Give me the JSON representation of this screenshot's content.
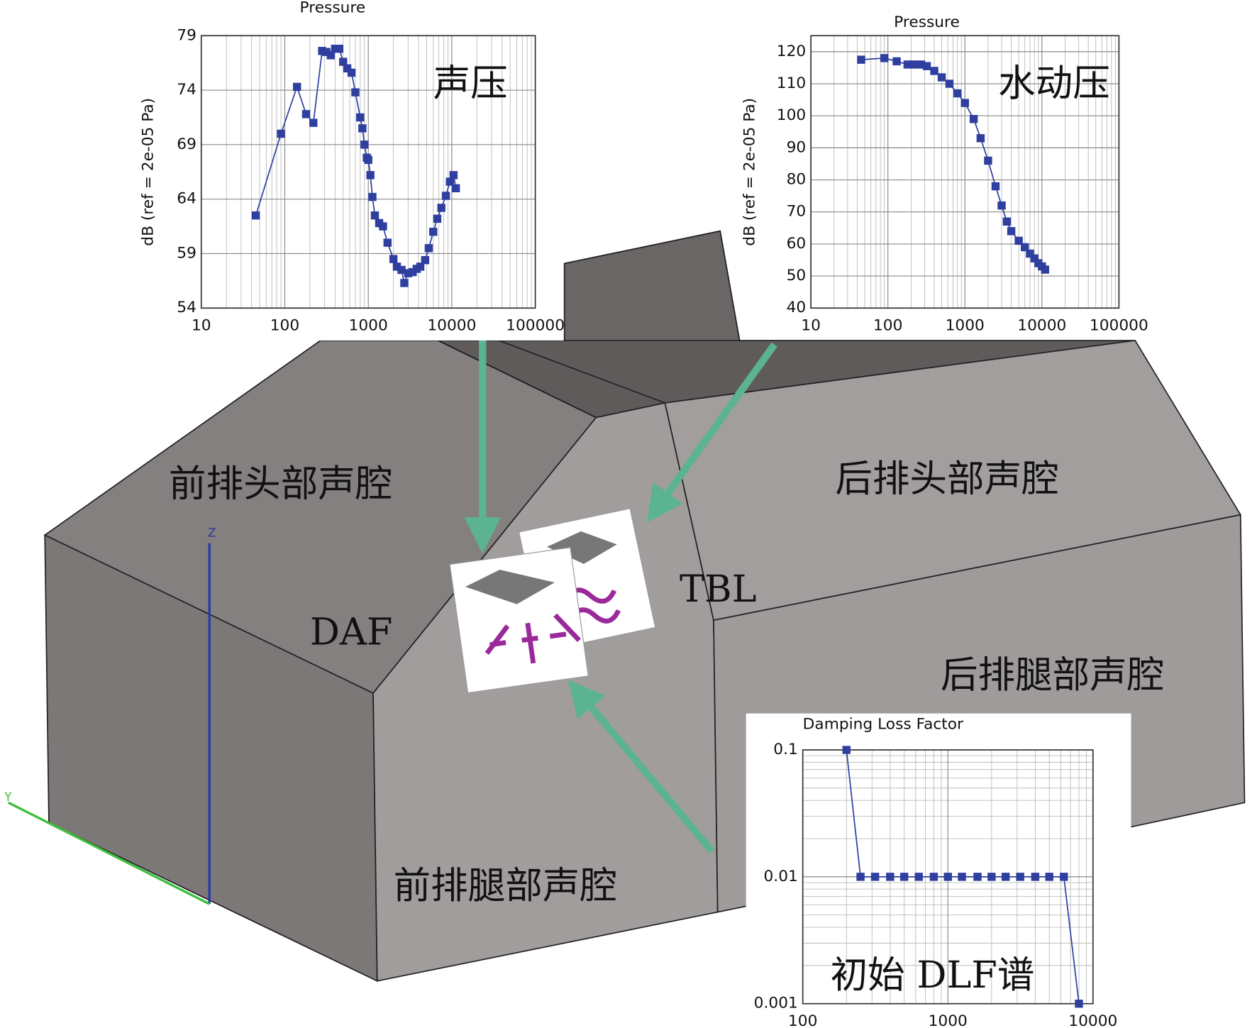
{
  "chart_data": [
    {
      "type": "line",
      "title": "Pressure",
      "y_label": "dB (ref = 2e-05 Pa)",
      "annotation": "声压",
      "color": "#2f3f9f",
      "x": [
        45,
        90,
        140,
        180,
        220,
        280,
        315,
        355,
        400,
        450,
        500,
        560,
        630,
        700,
        800,
        850,
        900,
        960,
        1000,
        1060,
        1120,
        1200,
        1350,
        1500,
        1700,
        2000,
        2200,
        2500,
        2700,
        3000,
        3400,
        3800,
        4200,
        4800,
        5300,
        6000,
        6700,
        7500,
        8500,
        9500,
        10500,
        11200
      ],
      "values": [
        62.5,
        70,
        74.3,
        71.8,
        71,
        77.6,
        77.5,
        77.2,
        77.8,
        77.8,
        76.6,
        76,
        75.6,
        73.8,
        71.5,
        70.5,
        69,
        67.8,
        67.6,
        66.2,
        64.2,
        62.5,
        61.8,
        61.5,
        60,
        58.5,
        57.8,
        57.5,
        56.3,
        57.2,
        57.3,
        57.6,
        57.8,
        58.4,
        59.5,
        61,
        62.2,
        63.2,
        64.3,
        65.6,
        66.2,
        65
      ],
      "xscale": "log",
      "xlim": [
        10,
        100000
      ],
      "xticks": [
        10,
        100,
        1000,
        10000,
        100000
      ],
      "ylim": [
        54,
        79
      ],
      "yticks": [
        54,
        59,
        64,
        69,
        74,
        79
      ],
      "grid": true
    },
    {
      "type": "line",
      "title": "Pressure",
      "y_label": "dB (ref = 2e-05 Pa)",
      "annotation": "水动压",
      "color": "#2f3f9f",
      "x": [
        45,
        90,
        130,
        180,
        220,
        270,
        320,
        400,
        500,
        630,
        800,
        1000,
        1300,
        1600,
        2000,
        2500,
        3000,
        3500,
        4000,
        5000,
        6000,
        7000,
        8000,
        9000,
        10000,
        11000
      ],
      "values": [
        117.5,
        118,
        117,
        116,
        116,
        116,
        115.5,
        114,
        112,
        110,
        107,
        104,
        99,
        93,
        86,
        78,
        72,
        67,
        64,
        61,
        59,
        57,
        55.5,
        54,
        53,
        52
      ],
      "xscale": "log",
      "xlim": [
        10,
        100000
      ],
      "xticks": [
        10,
        100,
        1000,
        10000,
        100000
      ],
      "ylim": [
        40,
        125
      ],
      "yticks": [
        40,
        50,
        60,
        70,
        80,
        90,
        100,
        110,
        120
      ],
      "grid": true
    },
    {
      "type": "line",
      "title": "Damping Loss Factor",
      "annotation": "初始 DLF谱",
      "color": "#2f3f9f",
      "x": [
        200,
        250,
        315,
        400,
        500,
        630,
        800,
        1000,
        1250,
        1600,
        2000,
        2500,
        3150,
        4000,
        5000,
        6300,
        8000
      ],
      "values": [
        0.1,
        0.01,
        0.01,
        0.01,
        0.01,
        0.01,
        0.01,
        0.01,
        0.01,
        0.01,
        0.01,
        0.01,
        0.01,
        0.01,
        0.01,
        0.01,
        0.001
      ],
      "xscale": "log",
      "yscale": "log",
      "xlim": [
        100,
        10000
      ],
      "xticks": [
        100,
        1000,
        10000
      ],
      "ylim": [
        0.001,
        0.1
      ],
      "yticks": [
        0.001,
        0.01,
        0.1
      ],
      "grid": true
    }
  ],
  "labels": {
    "front_head": "前排头部声腔",
    "rear_head": "后排头部声腔",
    "rear_leg": "后排腿部声腔",
    "front_leg": "前排腿部声腔",
    "daf": "DAF",
    "tbl": "TBL",
    "axis_z": "Z",
    "axis_y": "Y"
  }
}
